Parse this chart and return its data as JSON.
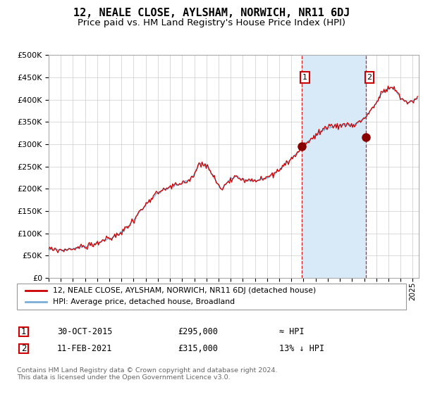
{
  "title": "12, NEALE CLOSE, AYLSHAM, NORWICH, NR11 6DJ",
  "subtitle": "Price paid vs. HM Land Registry's House Price Index (HPI)",
  "ylim": [
    0,
    500000
  ],
  "yticks": [
    0,
    50000,
    100000,
    150000,
    200000,
    250000,
    300000,
    350000,
    400000,
    450000,
    500000
  ],
  "xlim_start": 1995.0,
  "xlim_end": 2025.5,
  "transaction1_date": 2015.83,
  "transaction1_price": 295000,
  "transaction2_date": 2021.12,
  "transaction2_price": 315000,
  "hpi_color": "#7aaed6",
  "price_color": "#cc0000",
  "marker_color": "#880000",
  "dashed_color": "#cc0000",
  "shading_color": "#d8eaf8",
  "background_color": "#ffffff",
  "grid_color": "#cccccc",
  "legend1_text": "12, NEALE CLOSE, AYLSHAM, NORWICH, NR11 6DJ (detached house)",
  "legend2_text": "HPI: Average price, detached house, Broadland",
  "annotation1_date": "30-OCT-2015",
  "annotation1_price": "£295,000",
  "annotation1_rel": "≈ HPI",
  "annotation2_date": "11-FEB-2021",
  "annotation2_price": "£315,000",
  "annotation2_rel": "13% ↓ HPI",
  "footer": "Contains HM Land Registry data © Crown copyright and database right 2024.\nThis data is licensed under the Open Government Licence v3.0."
}
